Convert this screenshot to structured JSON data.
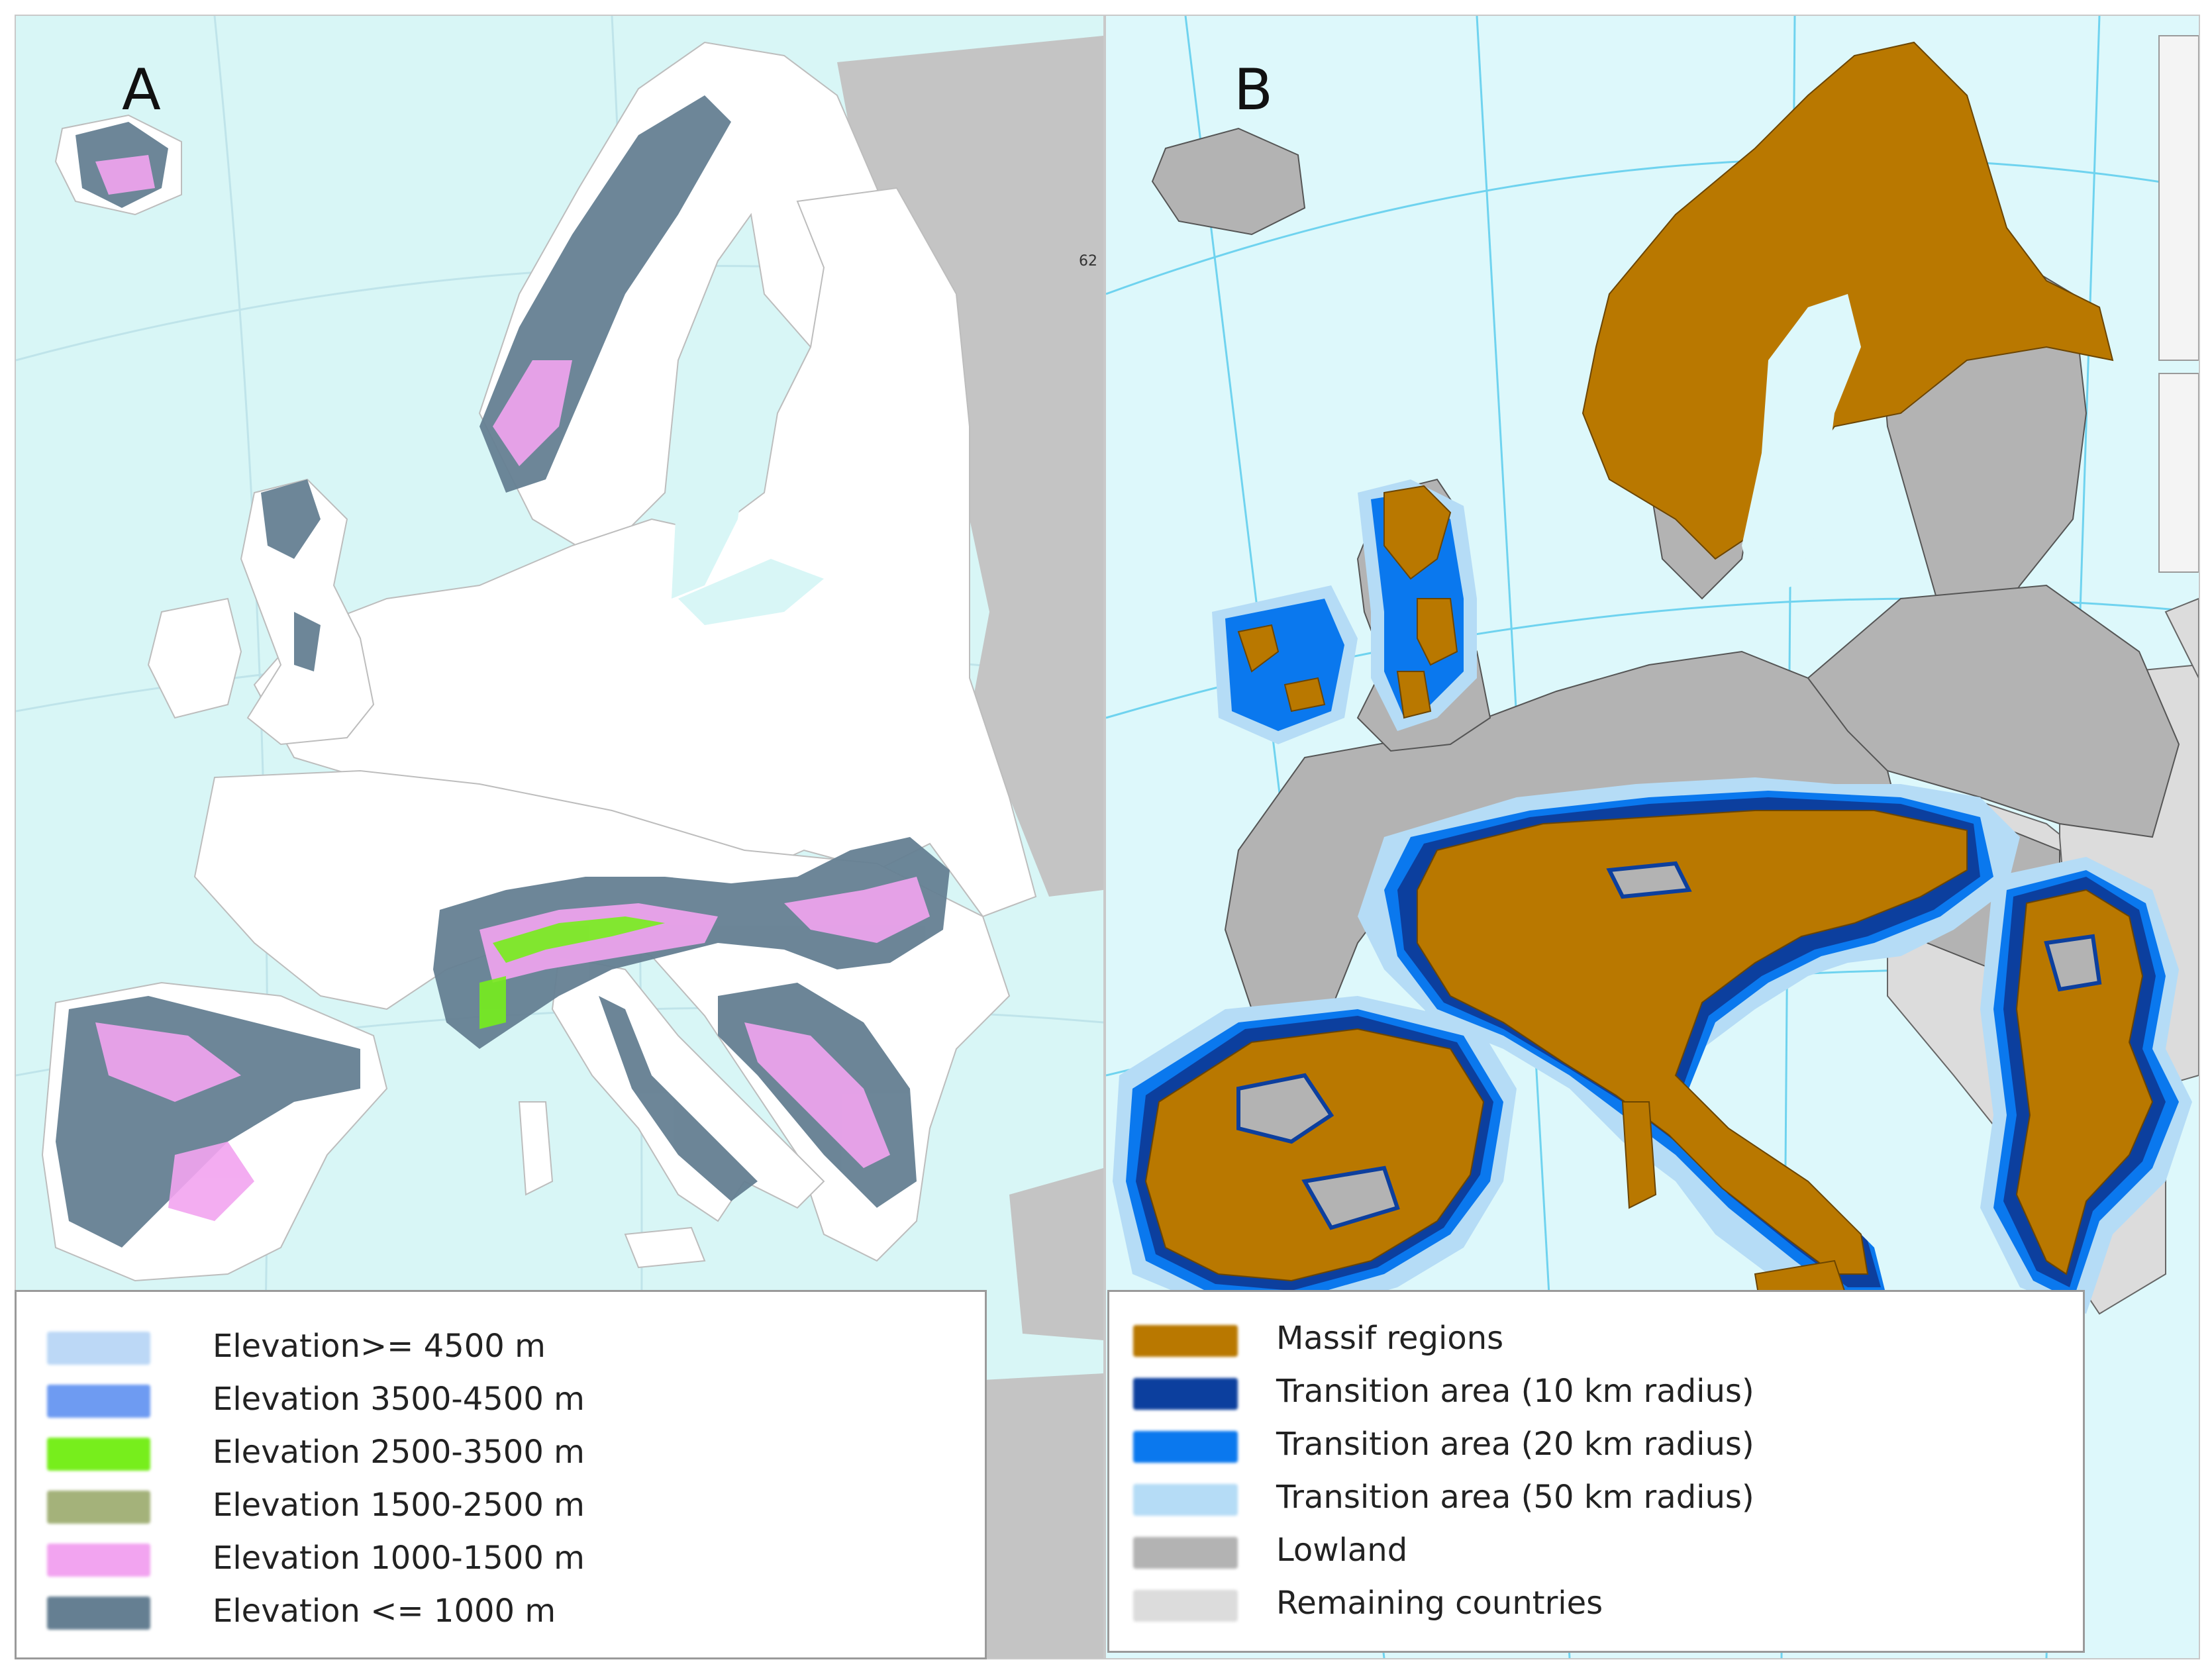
{
  "figure": {
    "panel_a": {
      "letter": "A",
      "grid_label": "62",
      "colors": {
        "sea": "#d8f6f6",
        "land": "#ffffff",
        "non_mapped": "#c4c4c4"
      },
      "legend": [
        {
          "label": "Elevation>= 4500 m",
          "color": "#bcd8f6"
        },
        {
          "label": "Elevation 3500-4500 m",
          "color": "#6e9bf2"
        },
        {
          "label": "Elevation 2500-3500 m",
          "color": "#77ee1c"
        },
        {
          "label": "Elevation 1500-2500 m",
          "color": "#a4b27a"
        },
        {
          "label": "Elevation 1000-1500 m",
          "color": "#f2a4f0"
        },
        {
          "label": "Elevation <= 1000 m",
          "color": "#657f92"
        }
      ]
    },
    "panel_b": {
      "letter": "B",
      "colors": {
        "sea": "#ddf8fb",
        "graticule": "#6fd3ef"
      },
      "legend": [
        {
          "label": "Massif regions",
          "color": "#b97800"
        },
        {
          "label": "Transition area (10 km radius)",
          "color": "#0c3f9e"
        },
        {
          "label": "Transition area (20 km radius)",
          "color": "#0a78ee"
        },
        {
          "label": "Transition area (50 km radius)",
          "color": "#b5dcf6"
        },
        {
          "label": "Lowland",
          "color": "#b3b3b3"
        },
        {
          "label": "Remaining countries",
          "color": "#dcdcdc"
        }
      ]
    }
  }
}
